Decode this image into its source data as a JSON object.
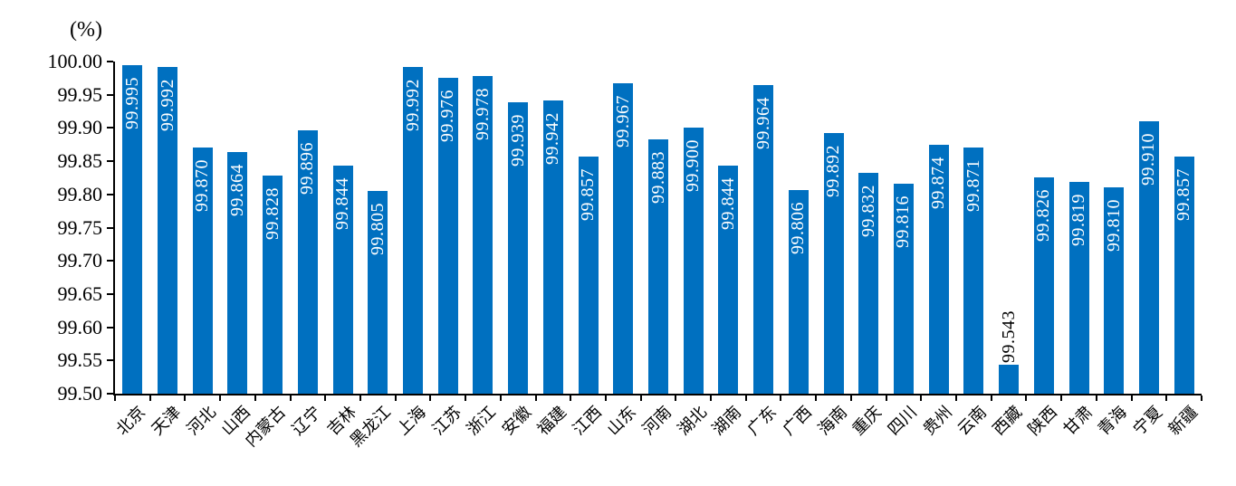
{
  "chart_data": {
    "type": "bar",
    "title": "",
    "ylabel": "(%)",
    "xlabel": "",
    "categories": [
      "北京",
      "天津",
      "河北",
      "山西",
      "内蒙古",
      "辽宁",
      "吉林",
      "黑龙江",
      "上海",
      "江苏",
      "浙江",
      "安徽",
      "福建",
      "江西",
      "山东",
      "河南",
      "湖北",
      "湖南",
      "广东",
      "广西",
      "海南",
      "重庆",
      "四川",
      "贵州",
      "云南",
      "西藏",
      "陕西",
      "甘肃",
      "青海",
      "宁夏",
      "新疆"
    ],
    "values": [
      99.995,
      99.992,
      99.87,
      99.864,
      99.828,
      99.896,
      99.844,
      99.805,
      99.992,
      99.976,
      99.978,
      99.939,
      99.942,
      99.857,
      99.967,
      99.883,
      99.9,
      99.844,
      99.964,
      99.806,
      99.892,
      99.832,
      99.816,
      99.874,
      99.871,
      99.543,
      99.826,
      99.819,
      99.81,
      99.91,
      99.857
    ],
    "value_labels": [
      "99.995",
      "99.992",
      "99.870",
      "99.864",
      "99.828",
      "99.896",
      "99.844",
      "99.805",
      "99.992",
      "99.976",
      "99.978",
      "99.939",
      "99.942",
      "99.857",
      "99.967",
      "99.883",
      "99.900",
      "99.844",
      "99.964",
      "99.806",
      "99.892",
      "99.832",
      "99.816",
      "99.874",
      "99.871",
      "99.543",
      "99.826",
      "99.819",
      "99.810",
      "99.910",
      "99.857"
    ],
    "ylim": [
      99.5,
      100.0
    ],
    "ytick_step": 0.05,
    "ytick_labels": [
      "100.00",
      "99.95",
      "99.90",
      "99.85",
      "99.80",
      "99.75",
      "99.70",
      "99.65",
      "99.60",
      "99.55",
      "99.50"
    ],
    "grid": false,
    "legend_position": "none",
    "bar_color": "#0070C0",
    "inside_label_color": "#FFFFFF",
    "outside_label_color": "#000000",
    "axis_color": "#000000"
  }
}
